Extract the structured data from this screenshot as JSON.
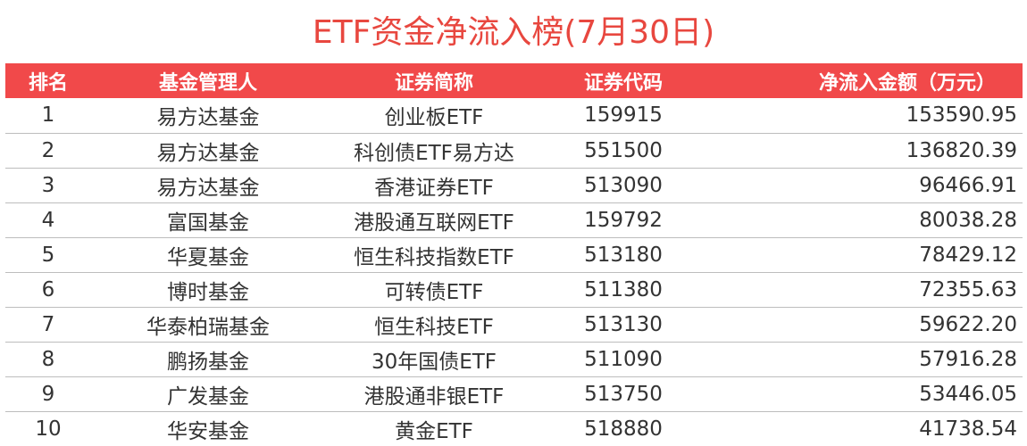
{
  "title": "ETF资金净流入榜(7月30日)",
  "colors": {
    "title": "#e8473f",
    "header_bg": "#f1494a",
    "header_text": "#ffffff",
    "row_text": "#333333",
    "divider": "#bdbdbd"
  },
  "table": {
    "headers": {
      "rank": "排名",
      "manager": "基金管理人",
      "name": "证券简称",
      "code": "证券代码",
      "net_inflow": "净流入金额（万元）"
    },
    "rows": [
      {
        "rank": "1",
        "manager": "易方达基金",
        "name": "创业板ETF",
        "code": "159915",
        "net_inflow": "153590.95"
      },
      {
        "rank": "2",
        "manager": "易方达基金",
        "name": "科创债ETF易方达",
        "code": "551500",
        "net_inflow": "136820.39"
      },
      {
        "rank": "3",
        "manager": "易方达基金",
        "name": "香港证券ETF",
        "code": "513090",
        "net_inflow": "96466.91"
      },
      {
        "rank": "4",
        "manager": "富国基金",
        "name": "港股通互联网ETF",
        "code": "159792",
        "net_inflow": "80038.28"
      },
      {
        "rank": "5",
        "manager": "华夏基金",
        "name": "恒生科技指数ETF",
        "code": "513180",
        "net_inflow": "78429.12"
      },
      {
        "rank": "6",
        "manager": "博时基金",
        "name": "可转债ETF",
        "code": "511380",
        "net_inflow": "72355.63"
      },
      {
        "rank": "7",
        "manager": "华泰柏瑞基金",
        "name": "恒生科技ETF",
        "code": "513130",
        "net_inflow": "59622.20"
      },
      {
        "rank": "8",
        "manager": "鹏扬基金",
        "name": "30年国债ETF",
        "code": "511090",
        "net_inflow": "57916.28"
      },
      {
        "rank": "9",
        "manager": "广发基金",
        "name": "港股通非银ETF",
        "code": "513750",
        "net_inflow": "53446.05"
      },
      {
        "rank": "10",
        "manager": "华安基金",
        "name": "黄金ETF",
        "code": "518880",
        "net_inflow": "41738.54"
      }
    ]
  }
}
